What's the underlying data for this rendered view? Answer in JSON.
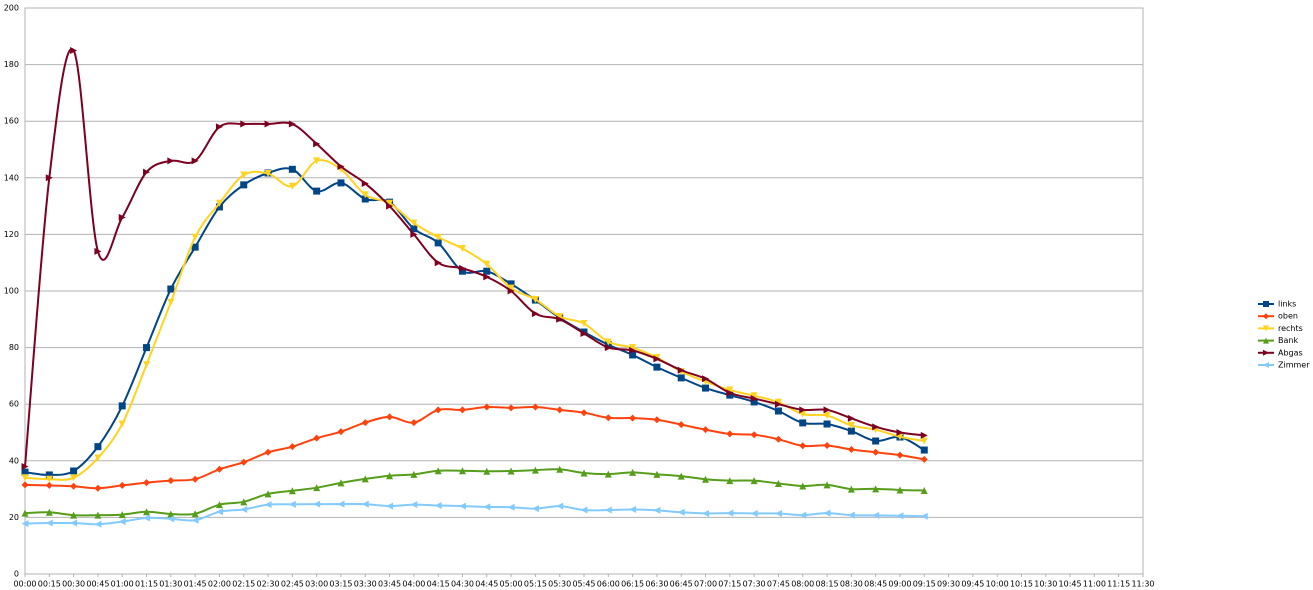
{
  "chart_data": {
    "type": "line",
    "categories": [
      "00:00",
      "00:15",
      "00:30",
      "00:45",
      "01:00",
      "01:15",
      "01:30",
      "01:45",
      "02:00",
      "02:15",
      "02:30",
      "02:45",
      "03:00",
      "03:15",
      "03:30",
      "03:45",
      "04:00",
      "04:15",
      "04:30",
      "04:45",
      "05:00",
      "05:15",
      "05:30",
      "05:45",
      "06:00",
      "06:15",
      "06:30",
      "06:45",
      "07:00",
      "07:15",
      "07:30",
      "07:45",
      "08:00",
      "08:15",
      "08:30",
      "08:45",
      "09:00",
      "09:15",
      "09:30",
      "09:45",
      "10:00",
      "10:15",
      "10:30",
      "10:45",
      "11:00",
      "11:15",
      "11:30"
    ],
    "series": [
      {
        "name": "links",
        "color": "#004586",
        "marker": "square",
        "values": [
          36,
          35,
          36.4,
          45,
          59.4,
          80,
          100.7,
          115.5,
          129.7,
          137.5,
          141.7,
          143,
          135.3,
          138.2,
          132.5,
          131.4,
          122,
          117,
          107,
          107,
          102.5,
          96.8,
          90.5,
          85.5,
          81,
          77.4,
          73.1,
          69.3,
          65.7,
          63.2,
          60.8,
          57.6,
          53.4,
          53,
          50.5,
          47,
          48.4,
          43.8,
          null,
          null,
          null,
          null,
          null,
          null,
          null,
          null,
          null
        ]
      },
      {
        "name": "oben",
        "color": "#ff420e",
        "marker": "diamond",
        "values": [
          31.5,
          31.3,
          31,
          30.3,
          31.3,
          32.3,
          33,
          33.5,
          37,
          39.5,
          43,
          45,
          48,
          50.3,
          53.5,
          55.5,
          53.5,
          58,
          58,
          59,
          58.7,
          59,
          58,
          57,
          55.2,
          55.1,
          54.5,
          52.8,
          51,
          49.5,
          49.2,
          47.6,
          45.3,
          45.4,
          44,
          43,
          42,
          40.5,
          null,
          null,
          null,
          null,
          null,
          null,
          null,
          null,
          null
        ]
      },
      {
        "name": "rechts",
        "color": "#ffd320",
        "marker": "down",
        "values": [
          34,
          33.5,
          34,
          41,
          53,
          74,
          96,
          119,
          131,
          141,
          141.5,
          137,
          146,
          143,
          134,
          131,
          124,
          119,
          115,
          109.5,
          101,
          97,
          91,
          88.5,
          82,
          80,
          76.5,
          71.5,
          68,
          65,
          63,
          60.7,
          56.5,
          56,
          52.5,
          51,
          48.5,
          47,
          null,
          null,
          null,
          null,
          null,
          null,
          null,
          null,
          null
        ]
      },
      {
        "name": "Bank",
        "color": "#579d1c",
        "marker": "up",
        "values": [
          21.5,
          21.8,
          20.8,
          20.8,
          21,
          22,
          21.2,
          21.3,
          24.5,
          25.5,
          28.3,
          29.4,
          30.5,
          32.2,
          33.6,
          34.7,
          35.2,
          36.5,
          36.5,
          36.3,
          36.4,
          36.7,
          37,
          35.7,
          35.3,
          35.9,
          35.2,
          34.6,
          33.5,
          33,
          33,
          32,
          31.1,
          31.5,
          30,
          30.1,
          29.7,
          29.5,
          null,
          null,
          null,
          null,
          null,
          null,
          null,
          null,
          null
        ]
      },
      {
        "name": "Abgas",
        "color": "#7e0021",
        "marker": "right",
        "values": [
          38,
          140,
          185,
          114,
          126,
          142,
          146,
          146,
          158,
          159,
          159,
          159,
          152,
          144,
          138,
          130,
          120,
          110,
          108,
          105,
          100,
          92,
          90,
          85,
          80,
          79,
          76,
          72,
          69,
          64,
          62,
          60,
          58,
          58,
          55,
          52,
          50,
          49,
          null,
          null,
          null,
          null,
          null,
          null,
          null,
          null,
          null
        ]
      },
      {
        "name": "Zimmer",
        "color": "#83caff",
        "marker": "left",
        "values": [
          17.8,
          18,
          18,
          17.6,
          18.5,
          19.8,
          19.5,
          19,
          22,
          22.8,
          24.5,
          24.6,
          24.7,
          24.7,
          24.7,
          24,
          24.5,
          24.2,
          24,
          23.7,
          23.6,
          23.1,
          24,
          22.6,
          22.6,
          22.8,
          22.5,
          21.8,
          21.4,
          21.5,
          21.4,
          21.4,
          20.8,
          21.5,
          20.8,
          20.7,
          20.6,
          20.4,
          null,
          null,
          null,
          null,
          null,
          null,
          null,
          null,
          null
        ]
      }
    ],
    "ylim": [
      0,
      200
    ],
    "yticks": [
      0,
      20,
      40,
      60,
      80,
      100,
      120,
      140,
      160,
      180,
      200
    ],
    "grid": true,
    "legend": "right"
  }
}
